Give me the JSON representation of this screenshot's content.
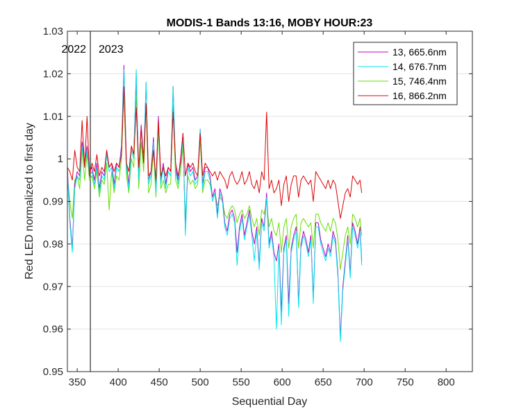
{
  "chart_data": {
    "type": "line",
    "title": "MODIS-1 Bands 13:16, MOBY HOUR:23",
    "xlabel": "Sequential Day",
    "ylabel": "Red LED normalized to first day",
    "xlim": [
      338,
      832
    ],
    "ylim": [
      0.95,
      1.03
    ],
    "xticks": [
      350,
      400,
      450,
      500,
      550,
      600,
      650,
      700,
      750,
      800
    ],
    "yticks": [
      0.95,
      0.96,
      0.97,
      0.98,
      0.99,
      1.0,
      1.01,
      1.02,
      1.03
    ],
    "ytick_labels": [
      "0.95",
      "0.96",
      "0.97",
      "0.98",
      "0.99",
      "1",
      "1.01",
      "1.02",
      "1.03"
    ],
    "grid": "horizontal",
    "legend_position": "top-right",
    "vertical_marker": {
      "x": 366,
      "label_left": "2022",
      "label_right": "2023"
    },
    "series": [
      {
        "name": "13, 665.6nm",
        "color": "#bf00bf",
        "x": [
          338,
          341,
          344,
          347,
          350,
          353,
          356,
          359,
          362,
          365,
          368,
          371,
          374,
          377,
          380,
          383,
          386,
          389,
          392,
          395,
          398,
          401,
          404,
          407,
          410,
          413,
          416,
          419,
          422,
          425,
          428,
          431,
          434,
          437,
          440,
          443,
          446,
          449,
          452,
          455,
          458,
          461,
          464,
          467,
          470,
          473,
          476,
          479,
          482,
          485,
          488,
          491,
          494,
          497,
          500,
          503,
          506,
          509,
          512,
          515,
          518,
          521,
          524,
          527,
          530,
          533,
          536,
          539,
          542,
          545,
          548,
          551,
          554,
          557,
          560,
          563,
          566,
          569,
          572,
          575,
          578,
          581,
          584,
          587,
          590,
          593,
          596,
          599,
          602,
          605,
          608,
          611,
          614,
          617,
          620,
          623,
          626,
          629,
          632,
          635,
          638,
          641,
          644,
          647,
          650,
          653,
          656,
          659,
          662,
          665,
          668,
          671,
          674,
          677,
          680,
          683,
          686,
          689,
          692,
          695,
          697
        ],
        "values": [
          0.998,
          0.986,
          0.979,
          0.994,
          0.997,
          0.996,
          1.004,
          0.999,
          1.003,
          0.997,
          0.998,
          0.995,
          0.999,
          0.993,
          0.997,
          0.996,
          1.002,
          0.998,
          0.999,
          0.994,
          0.999,
          0.998,
          1.003,
          1.022,
          0.999,
          0.994,
          1.003,
          1.001,
          1.02,
          0.996,
          1.008,
          1.0,
          1.018,
          0.995,
          0.997,
          1.005,
          0.993,
          1.01,
          0.995,
          0.999,
          0.994,
          0.998,
          0.997,
          1.017,
          0.998,
          0.995,
          1.0,
          1.006,
          0.983,
          0.999,
          0.997,
          0.998,
          0.995,
          0.996,
          1.007,
          0.994,
          0.998,
          0.998,
          0.996,
          0.991,
          0.993,
          0.987,
          0.993,
          0.991,
          0.985,
          0.983,
          0.987,
          0.988,
          0.986,
          0.978,
          0.984,
          0.987,
          0.982,
          0.985,
          0.988,
          0.983,
          0.98,
          0.984,
          0.975,
          0.986,
          0.984,
          0.992,
          0.98,
          0.983,
          0.978,
          0.976,
          0.98,
          0.964,
          0.979,
          0.982,
          0.966,
          0.979,
          0.982,
          0.984,
          0.966,
          0.98,
          0.983,
          0.981,
          0.978,
          0.982,
          0.967,
          0.985,
          0.985,
          0.981,
          0.979,
          0.977,
          0.98,
          0.978,
          0.983,
          0.981,
          0.973,
          0.958,
          0.97,
          0.976,
          0.982,
          0.973,
          0.985,
          0.983,
          0.98,
          0.984,
          0.976
        ]
      },
      {
        "name": "14, 676.7nm",
        "color": "#00e5ee",
        "x": [
          338,
          341,
          344,
          347,
          350,
          353,
          356,
          359,
          362,
          365,
          368,
          371,
          374,
          377,
          380,
          383,
          386,
          389,
          392,
          395,
          398,
          401,
          404,
          407,
          410,
          413,
          416,
          419,
          422,
          425,
          428,
          431,
          434,
          437,
          440,
          443,
          446,
          449,
          452,
          455,
          458,
          461,
          464,
          467,
          470,
          473,
          476,
          479,
          482,
          485,
          488,
          491,
          494,
          497,
          500,
          503,
          506,
          509,
          512,
          515,
          518,
          521,
          524,
          527,
          530,
          533,
          536,
          539,
          542,
          545,
          548,
          551,
          554,
          557,
          560,
          563,
          566,
          569,
          572,
          575,
          578,
          581,
          584,
          587,
          590,
          593,
          596,
          599,
          602,
          605,
          608,
          611,
          614,
          617,
          620,
          623,
          626,
          629,
          632,
          635,
          638,
          641,
          644,
          647,
          650,
          653,
          656,
          659,
          662,
          665,
          668,
          671,
          674,
          677,
          680,
          683,
          686,
          689,
          692,
          695,
          697
        ],
        "values": [
          0.997,
          0.985,
          0.978,
          0.993,
          0.996,
          0.995,
          1.003,
          0.998,
          1.002,
          0.996,
          0.997,
          0.994,
          0.998,
          0.992,
          0.996,
          0.995,
          1.001,
          0.997,
          0.998,
          0.993,
          0.998,
          0.997,
          1.002,
          1.021,
          0.998,
          0.993,
          1.002,
          1.0,
          1.021,
          0.995,
          1.007,
          0.999,
          1.018,
          0.994,
          0.996,
          1.004,
          0.992,
          1.009,
          0.994,
          0.998,
          0.993,
          0.997,
          0.996,
          1.017,
          0.997,
          0.994,
          0.999,
          1.005,
          0.982,
          0.998,
          0.996,
          0.997,
          0.994,
          0.995,
          1.007,
          0.993,
          0.997,
          0.997,
          0.995,
          0.99,
          0.992,
          0.986,
          0.992,
          0.99,
          0.984,
          0.982,
          0.986,
          0.987,
          0.985,
          0.975,
          0.983,
          0.986,
          0.981,
          0.984,
          0.987,
          0.982,
          0.976,
          0.983,
          0.974,
          0.985,
          0.983,
          0.991,
          0.979,
          0.982,
          0.977,
          0.96,
          0.979,
          0.961,
          0.978,
          0.981,
          0.963,
          0.978,
          0.981,
          0.983,
          0.965,
          0.979,
          0.982,
          0.98,
          0.977,
          0.981,
          0.966,
          0.984,
          0.984,
          0.98,
          0.978,
          0.976,
          0.979,
          0.977,
          0.982,
          0.98,
          0.972,
          0.957,
          0.969,
          0.975,
          0.981,
          0.972,
          0.984,
          0.982,
          0.979,
          0.983,
          0.975
        ]
      },
      {
        "name": "15, 746.4nm",
        "color": "#66dd00",
        "x": [
          338,
          341,
          344,
          347,
          350,
          353,
          356,
          359,
          362,
          365,
          368,
          371,
          374,
          377,
          380,
          383,
          386,
          389,
          392,
          395,
          398,
          401,
          404,
          407,
          410,
          413,
          416,
          419,
          422,
          425,
          428,
          431,
          434,
          437,
          440,
          443,
          446,
          449,
          452,
          455,
          458,
          461,
          464,
          467,
          470,
          473,
          476,
          479,
          482,
          485,
          488,
          491,
          494,
          497,
          500,
          503,
          506,
          509,
          512,
          515,
          518,
          521,
          524,
          527,
          530,
          533,
          536,
          539,
          542,
          545,
          548,
          551,
          554,
          557,
          560,
          563,
          566,
          569,
          572,
          575,
          578,
          581,
          584,
          587,
          590,
          593,
          596,
          599,
          602,
          605,
          608,
          611,
          614,
          617,
          620,
          623,
          626,
          629,
          632,
          635,
          638,
          641,
          644,
          647,
          650,
          653,
          656,
          659,
          662,
          665,
          668,
          671,
          674,
          677,
          680,
          683,
          686,
          689,
          692,
          695,
          697
        ],
        "values": [
          0.996,
          0.99,
          0.986,
          0.995,
          0.996,
          0.993,
          1.002,
          0.995,
          1.001,
          0.995,
          0.996,
          0.993,
          0.997,
          0.991,
          0.995,
          0.994,
          0.999,
          0.988,
          0.997,
          0.992,
          0.996,
          0.995,
          1.0,
          1.016,
          0.996,
          0.992,
          1.0,
          0.998,
          1.016,
          0.993,
          1.004,
          0.997,
          1.013,
          0.992,
          0.994,
          1.002,
          0.991,
          1.007,
          0.993,
          0.995,
          0.992,
          0.994,
          0.994,
          1.013,
          0.995,
          0.993,
          0.997,
          1.003,
          0.986,
          0.996,
          0.994,
          0.995,
          0.993,
          0.994,
          1.005,
          0.992,
          0.995,
          0.995,
          0.994,
          0.991,
          0.992,
          0.989,
          0.991,
          0.99,
          0.987,
          0.986,
          0.988,
          0.989,
          0.988,
          0.985,
          0.987,
          0.988,
          0.986,
          0.987,
          0.989,
          0.986,
          0.984,
          0.986,
          0.982,
          0.988,
          0.987,
          0.99,
          0.984,
          0.986,
          0.983,
          0.982,
          0.985,
          0.978,
          0.984,
          0.986,
          0.979,
          0.984,
          0.986,
          0.987,
          0.979,
          0.985,
          0.986,
          0.985,
          0.984,
          0.985,
          0.979,
          0.987,
          0.987,
          0.985,
          0.984,
          0.983,
          0.985,
          0.983,
          0.986,
          0.985,
          0.981,
          0.974,
          0.978,
          0.982,
          0.984,
          0.98,
          0.987,
          0.986,
          0.984,
          0.986,
          0.982
        ]
      },
      {
        "name": "16, 866.2nm",
        "color": "#dd0000",
        "x": [
          338,
          341,
          344,
          347,
          350,
          353,
          356,
          359,
          362,
          365,
          368,
          371,
          374,
          377,
          380,
          383,
          386,
          389,
          392,
          395,
          398,
          401,
          404,
          407,
          410,
          413,
          416,
          419,
          422,
          425,
          428,
          431,
          434,
          437,
          440,
          443,
          446,
          449,
          452,
          455,
          458,
          461,
          464,
          467,
          470,
          473,
          476,
          479,
          482,
          485,
          488,
          491,
          494,
          497,
          500,
          503,
          506,
          509,
          512,
          515,
          518,
          521,
          524,
          527,
          530,
          533,
          536,
          539,
          542,
          545,
          548,
          551,
          554,
          557,
          560,
          563,
          566,
          569,
          572,
          575,
          578,
          581,
          584,
          587,
          590,
          593,
          596,
          599,
          602,
          605,
          608,
          611,
          614,
          617,
          620,
          623,
          626,
          629,
          632,
          635,
          638,
          641,
          644,
          647,
          650,
          653,
          656,
          659,
          662,
          665,
          668,
          671,
          674,
          677,
          680,
          683,
          686,
          689,
          692,
          695,
          697
        ],
        "values": [
          0.998,
          0.997,
          0.995,
          1.002,
          0.998,
          0.997,
          1.009,
          0.998,
          1.01,
          0.996,
          0.999,
          0.997,
          1.001,
          0.996,
          0.998,
          0.997,
          1.002,
          0.998,
          0.999,
          0.997,
          0.999,
          0.998,
          1.001,
          1.017,
          0.999,
          0.997,
          1.003,
          1.001,
          1.012,
          0.998,
          1.007,
          0.999,
          1.013,
          0.996,
          0.997,
          1.002,
          0.995,
          1.009,
          0.996,
          0.998,
          0.996,
          0.998,
          0.997,
          1.011,
          0.999,
          0.996,
          0.999,
          1.006,
          0.996,
          0.999,
          0.998,
          0.999,
          0.997,
          0.996,
          1.006,
          0.996,
          0.999,
          0.998,
          0.997,
          0.996,
          0.997,
          0.995,
          0.997,
          0.996,
          0.995,
          0.993,
          0.996,
          0.997,
          0.995,
          0.994,
          0.995,
          0.997,
          0.994,
          0.995,
          0.997,
          0.994,
          0.993,
          0.995,
          0.992,
          0.997,
          0.995,
          1.011,
          0.993,
          0.995,
          0.992,
          0.993,
          0.995,
          0.989,
          0.994,
          0.996,
          0.99,
          0.994,
          0.996,
          0.996,
          0.991,
          0.995,
          0.996,
          0.995,
          0.994,
          0.995,
          0.99,
          0.997,
          0.996,
          0.995,
          0.994,
          0.993,
          0.995,
          0.993,
          0.995,
          0.994,
          0.99,
          0.986,
          0.989,
          0.992,
          0.993,
          0.991,
          0.996,
          0.995,
          0.994,
          0.995,
          0.992
        ]
      }
    ]
  }
}
